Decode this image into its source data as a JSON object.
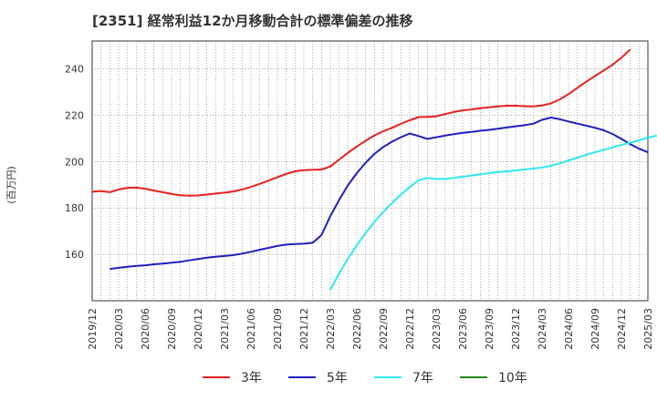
{
  "chart_data": {
    "type": "line",
    "title": "[2351]  経常利益12か月移動合計の標準偏差の推移",
    "ylabel": "(百万円)",
    "xlabel": "",
    "ylim": [
      140,
      252
    ],
    "yticks": [
      160,
      180,
      200,
      220,
      240
    ],
    "xlim": [
      0,
      63
    ],
    "xticks": [
      "2019/12",
      "2020/03",
      "2020/06",
      "2020/09",
      "2020/12",
      "2021/03",
      "2021/06",
      "2021/09",
      "2021/12",
      "2022/03",
      "2022/06",
      "2022/09",
      "2022/12",
      "2023/03",
      "2023/06",
      "2023/09",
      "2023/12",
      "2024/03",
      "2024/06",
      "2024/09",
      "2024/12",
      "2025/03"
    ],
    "grid": true,
    "legend_position": "bottom",
    "series": [
      {
        "name": "3年",
        "color": "#e8201c",
        "start_index": 0,
        "values": [
          187,
          187.3,
          186.8,
          188,
          188.7,
          188.8,
          188.3,
          187.5,
          186.8,
          186,
          185.5,
          185.3,
          185.4,
          185.8,
          186.2,
          186.6,
          187.1,
          188,
          189.1,
          190.4,
          191.8,
          193.3,
          194.7,
          195.8,
          196.3,
          196.5,
          196.6,
          197.9,
          200.9,
          203.8,
          206.5,
          209,
          211.3,
          213.1,
          214.6,
          216.3,
          217.8,
          219.2,
          219.3,
          219.5,
          220.5,
          221.4,
          222.1,
          222.5,
          223,
          223.4,
          223.8,
          224.1,
          224.1,
          223.9,
          223.8,
          224.2,
          225.1,
          226.8,
          229.1,
          231.8,
          234.4,
          236.9,
          239.3,
          241.8,
          244.8,
          248.3
        ]
      },
      {
        "name": "5年",
        "color": "#1f1fbf",
        "start_index": 2,
        "values": [
          153.7,
          154.2,
          154.6,
          155,
          155.3,
          155.7,
          156,
          156.4,
          156.8,
          157.4,
          158,
          158.6,
          159,
          159.3,
          159.7,
          160.3,
          161.1,
          162,
          162.8,
          163.6,
          164.2,
          164.5,
          164.6,
          165,
          168.3,
          176.5,
          183.5,
          189.8,
          195,
          199.5,
          203.3,
          206.3,
          208.6,
          210.5,
          212.1,
          211,
          209.8,
          210.5,
          211.2,
          211.8,
          212.4,
          212.8,
          213.3,
          213.7,
          214.2,
          214.7,
          215.2,
          215.7,
          216.3,
          218,
          219,
          218.3,
          217.3,
          216.4,
          215.5,
          214.6,
          213.5,
          211.9,
          209.8,
          207.5,
          205.6,
          204
        ]
      },
      {
        "name": "7年",
        "color": "#2fe8ef",
        "start_index": 27,
        "values": [
          144.7,
          151.8,
          158.2,
          163.9,
          169.2,
          174,
          178.3,
          182.2,
          185.8,
          189,
          191.9,
          192.9,
          192.6,
          192.5,
          193,
          193.5,
          194,
          194.5,
          195,
          195.5,
          195.8,
          196.2,
          196.6,
          197,
          197.4,
          198.2,
          199.2,
          200.5,
          201.7,
          202.9,
          204,
          205.1,
          206.1,
          207.2,
          208.2,
          209.2,
          210.3,
          211.2
        ]
      },
      {
        "name": "10年",
        "color": "#1e8a1e",
        "start_index": 0,
        "values": []
      }
    ]
  }
}
